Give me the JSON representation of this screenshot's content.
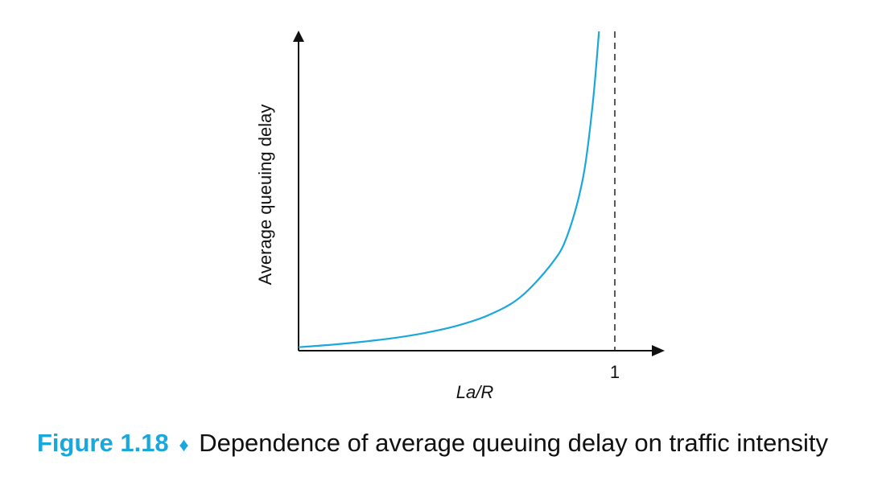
{
  "figure": {
    "label": "Figure 1.18",
    "separator": "♦",
    "caption": "Dependence of average queuing delay on traffic intensity"
  },
  "chart_data": {
    "type": "line",
    "title": "",
    "xlabel": "La/R",
    "ylabel": "Average queuing delay",
    "x_tick_labels": [
      "1"
    ],
    "asymptote_x": 1,
    "xlim": [
      0,
      1.15
    ],
    "ylim": [
      0,
      18
    ],
    "grid": false,
    "legend": "none",
    "colors": {
      "curve": "#1aa7dc",
      "axes": "#111111"
    },
    "series": [
      {
        "x": [
          0,
          0.1,
          0.2,
          0.3,
          0.4,
          0.5,
          0.6,
          0.7,
          0.8,
          0.85,
          0.9,
          0.93,
          0.95
        ],
        "values": [
          0.2,
          0.33,
          0.5,
          0.71,
          1.0,
          1.4,
          2.0,
          3.0,
          4.9,
          6.5,
          9.8,
          13.9,
          18.0
        ]
      }
    ]
  }
}
